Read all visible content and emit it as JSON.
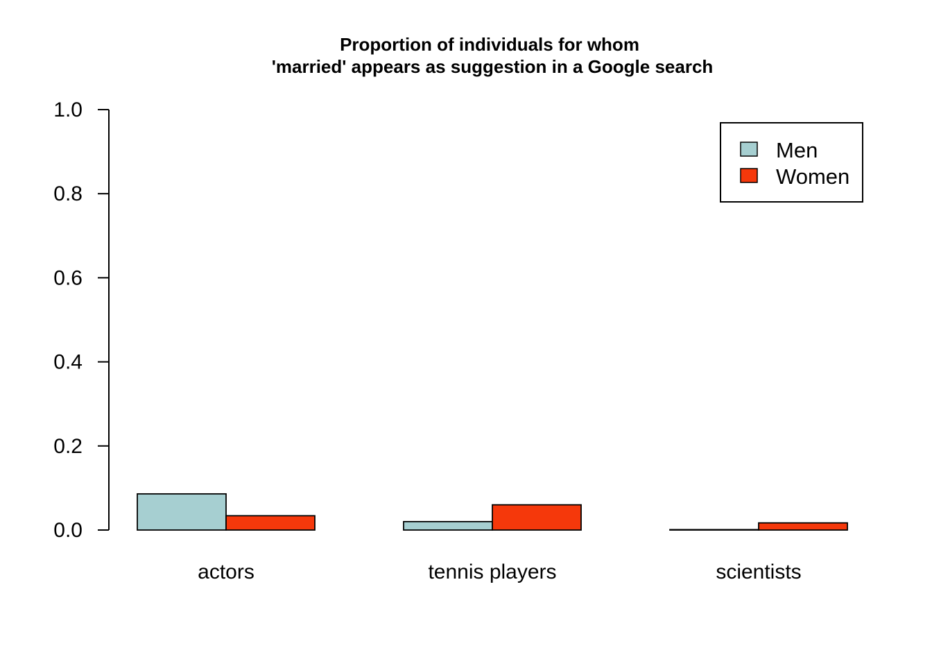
{
  "chart_data": {
    "type": "bar",
    "title_lines": [
      "Proportion of individuals for whom",
      "'married' appears as suggestion in a Google search"
    ],
    "categories": [
      "actors",
      "tennis players",
      "scientists"
    ],
    "series": [
      {
        "name": "Men",
        "color": "#a6cfd1",
        "values": [
          0.086,
          0.02,
          0.001
        ]
      },
      {
        "name": "Women",
        "color": "#f5380b",
        "values": [
          0.034,
          0.06,
          0.017
        ]
      }
    ],
    "ylim": [
      0,
      1.0
    ],
    "yticks": [
      "0.0",
      "0.2",
      "0.4",
      "0.6",
      "0.8",
      "1.0"
    ],
    "grid": false,
    "legend_position": "top-right"
  }
}
